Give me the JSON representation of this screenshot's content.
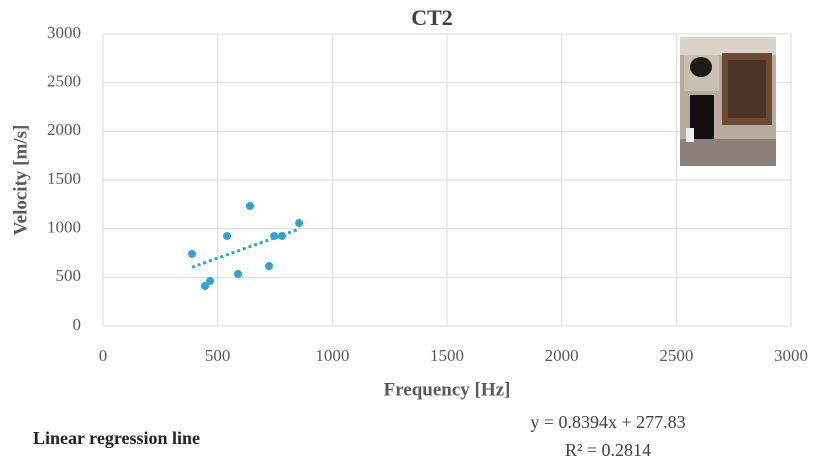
{
  "chart_data": {
    "type": "scatter",
    "title": "CT2",
    "x_label": "Frequency [Hz]",
    "y_label": "Velocity [m/s]",
    "x": [
      388,
      445,
      467,
      541,
      589,
      641,
      724,
      746,
      781,
      855
    ],
    "values": [
      740,
      411,
      462,
      925,
      534,
      1233,
      616,
      925,
      925,
      1058
    ],
    "color": "#2fa3d9",
    "xlim": [
      0,
      3000
    ],
    "xticks": [
      0,
      500,
      1000,
      1500,
      2000,
      2500,
      3000
    ],
    "ylim": [
      0,
      3000
    ],
    "yticks": [
      0,
      500,
      1000,
      1500,
      2000,
      2500,
      3000
    ],
    "grid": true,
    "trendline": {
      "slope": 0.8394,
      "intercept": 277.83,
      "equation": "y = 0.8394x + 277.83",
      "r2": 0.2814,
      "r2_label": "R² = 0.2814",
      "label": "Linear regression line"
    }
  }
}
